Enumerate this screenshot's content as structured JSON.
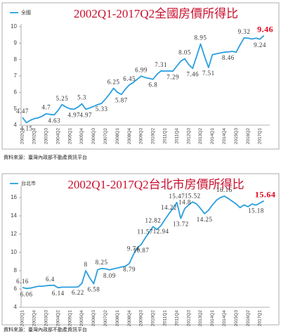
{
  "chart_data": [
    {
      "type": "line",
      "title": "2002Q1-2017Q2全國房價所得比",
      "source": "資料來源：臺灣內政部不動產資訊平台",
      "categories": [
        "2002Q1",
        null,
        null,
        "2002Q4",
        null,
        null,
        "2003Q3",
        null,
        null,
        "2004Q2",
        null,
        null,
        "2005Q1",
        null,
        null,
        "2005Q4",
        null,
        null,
        "2006Q3",
        null,
        null,
        "2007Q2",
        null,
        null,
        "2008Q1",
        null,
        null,
        "2008Q4",
        null,
        null,
        "2009Q3",
        null,
        null,
        "2010Q2",
        null,
        null,
        "2011Q1",
        null,
        null,
        "2011Q4",
        null,
        null,
        "2012Q3",
        null,
        null,
        "2013Q2",
        null,
        null,
        "2014Q1",
        null,
        null,
        "2014Q4",
        null,
        null,
        "2015Q3",
        null,
        null,
        "2016Q2",
        null,
        null,
        "2017Q1",
        null
      ],
      "series": [
        {
          "name": "全國",
          "color": "#2a9fe0",
          "values": [
            4.47,
            4.15,
            4.3,
            4.4,
            4.45,
            4.55,
            4.7,
            4.65,
            4.63,
            4.9,
            5.25,
            5.1,
            5.0,
            4.97,
            5.1,
            5.3,
            4.97,
            5.05,
            5.15,
            5.25,
            5.33,
            5.6,
            5.9,
            6.25,
            6.0,
            5.87,
            6.2,
            6.45,
            6.6,
            6.8,
            6.99,
            6.9,
            6.85,
            6.8,
            7.1,
            7.31,
            7.3,
            7.3,
            7.29,
            7.6,
            7.9,
            8.05,
            7.7,
            7.46,
            8.2,
            8.95,
            8.2,
            7.51,
            8.3,
            8.35,
            8.4,
            8.45,
            8.46,
            8.5,
            8.45,
            8.9,
            9.32,
            9.3,
            9.25,
            9.3,
            9.24,
            9.46
          ],
          "value_labels": [
            "4.47",
            "4.15",
            null,
            null,
            null,
            null,
            "4.7",
            null,
            "4.63",
            null,
            "5.25",
            null,
            null,
            "4.97",
            null,
            "5.3",
            "4.97",
            null,
            null,
            null,
            "5.33",
            null,
            null,
            "6.25",
            null,
            "5.87",
            null,
            "6.45",
            null,
            null,
            "6.99",
            null,
            null,
            "6.8",
            null,
            "7.31",
            null,
            null,
            "7.29",
            null,
            null,
            "8.05",
            null,
            "7.46",
            null,
            "8.95",
            null,
            "7.51",
            null,
            null,
            null,
            null,
            "8.46",
            null,
            null,
            null,
            "9.32",
            null,
            null,
            null,
            "9.24",
            "9.46"
          ]
        }
      ],
      "highlight_color": "#e3001b",
      "ylim": [
        4,
        10
      ],
      "yticks": [
        4,
        5,
        6,
        7,
        8,
        9,
        10
      ],
      "grid": false,
      "legend": "top-left"
    },
    {
      "type": "line",
      "title": "2002Q1-2017Q2台北市房價所得比",
      "source": "資料來源：臺灣內政部不動產資訊平台",
      "categories": [
        "2002Q1",
        null,
        null,
        "2002Q4",
        null,
        null,
        "2003Q3",
        null,
        null,
        "2004Q2",
        null,
        null,
        "2005Q1",
        null,
        null,
        "2005Q4",
        null,
        null,
        "2006Q3",
        null,
        null,
        "2007Q2",
        null,
        null,
        "2008Q1",
        null,
        null,
        "2008Q4",
        null,
        null,
        "2009Q3",
        null,
        null,
        "2010Q2",
        null,
        null,
        "2011Q1",
        null,
        null,
        "2011Q4",
        null,
        null,
        "2012Q3",
        null,
        null,
        "2013Q2",
        null,
        null,
        "2014Q1",
        null,
        null,
        "2014Q4",
        null,
        null,
        "2015Q3",
        null,
        null,
        "2016Q2",
        null,
        null,
        "2017Q1",
        null
      ],
      "series": [
        {
          "name": "台北市",
          "color": "#2a9fe0",
          "values": [
            6.16,
            6.06,
            6.1,
            6.2,
            6.3,
            6.3,
            6.35,
            6.4,
            6.4,
            6.14,
            6.2,
            6.2,
            6.2,
            6.2,
            6.22,
            6.6,
            8.0,
            7.2,
            6.58,
            8.1,
            8.25,
            8.2,
            8.09,
            8.2,
            8.3,
            8.4,
            8.5,
            8.79,
            9.74,
            10.5,
            10.87,
            11.57,
            12.2,
            12.82,
            12.5,
            12.94,
            13.6,
            14.22,
            14.8,
            15.47,
            13.72,
            14.8,
            15.2,
            15.52,
            15.3,
            14.8,
            14.25,
            14.6,
            15.2,
            15.7,
            16.0,
            16.16,
            15.9,
            15.6,
            15.3,
            14.9,
            15.2,
            15.0,
            15.3,
            15.18,
            15.4,
            15.64
          ],
          "value_labels": [
            "6.16",
            "6.06",
            null,
            null,
            null,
            null,
            null,
            "6.4",
            null,
            "6.14",
            null,
            null,
            null,
            null,
            "6.22",
            null,
            "8",
            null,
            "6.58",
            null,
            "8.25",
            null,
            "8.09",
            null,
            null,
            null,
            null,
            "8.79",
            "9.74",
            null,
            "10.87",
            "11.57",
            null,
            "12.82",
            null,
            "12.94",
            null,
            "14.22",
            null,
            "15.47",
            "13.72",
            "14.8",
            null,
            "15.52",
            null,
            null,
            "14.25",
            null,
            null,
            null,
            null,
            "16.16",
            null,
            null,
            null,
            null,
            null,
            null,
            null,
            "15.18",
            null,
            "15.64"
          ]
        }
      ],
      "highlight_color": "#e3001b",
      "ylim": [
        4,
        17
      ],
      "yticks": [
        4,
        6,
        8,
        10,
        12,
        14,
        16
      ],
      "grid": false,
      "legend": "top-left"
    }
  ]
}
